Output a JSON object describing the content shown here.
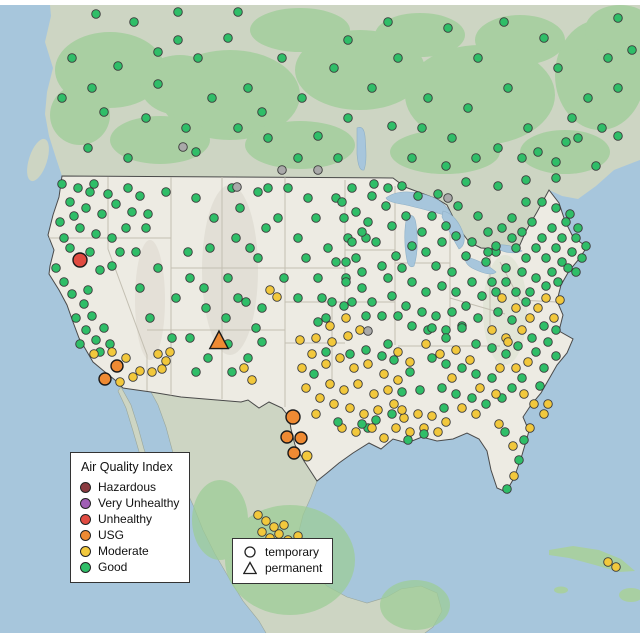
{
  "legend": {
    "title": "Air Quality Index",
    "items": [
      {
        "label": "Hazardous",
        "level": "h"
      },
      {
        "label": "Very Unhealthy",
        "level": "v"
      },
      {
        "label": "Unhealthy",
        "level": "r"
      },
      {
        "label": "USG",
        "level": "u"
      },
      {
        "label": "Moderate",
        "level": "m"
      },
      {
        "label": "Good",
        "level": "g"
      }
    ]
  },
  "shape_legend": {
    "items": [
      {
        "label": "temporary",
        "shape": "circle"
      },
      {
        "label": "permanent",
        "shape": "triangle"
      }
    ]
  },
  "colors": {
    "h": "#8a3a40",
    "v": "#a05fb5",
    "r": "#e14b41",
    "u": "#ee8a33",
    "m": "#f2c83c",
    "g": "#2fbe68",
    "x": "#a9a9a9"
  },
  "map_palette": {
    "ocean": "#a7c6dc",
    "land_other": "#cdd5c3",
    "land_us": "#edebe3",
    "vegetation": "#9ccd96",
    "state_line": "#c3bfb2"
  },
  "markers_format": "[x, y, level?(g|m|u|r|x), radius?, shape?(c|t)]",
  "markers": [
    [
      96,
      14
    ],
    [
      134,
      22
    ],
    [
      178,
      40
    ],
    [
      72,
      58
    ],
    [
      118,
      66
    ],
    [
      158,
      84
    ],
    [
      62,
      98
    ],
    [
      104,
      112
    ],
    [
      146,
      118
    ],
    [
      198,
      58
    ],
    [
      228,
      38
    ],
    [
      212,
      98
    ],
    [
      248,
      88
    ],
    [
      186,
      128
    ],
    [
      238,
      128
    ],
    [
      282,
      58
    ],
    [
      302,
      98
    ],
    [
      268,
      138
    ],
    [
      318,
      136
    ],
    [
      348,
      118
    ],
    [
      334,
      68
    ],
    [
      372,
      88
    ],
    [
      398,
      58
    ],
    [
      392,
      126
    ],
    [
      428,
      98
    ],
    [
      452,
      138
    ],
    [
      478,
      58
    ],
    [
      468,
      108
    ],
    [
      508,
      88
    ],
    [
      528,
      128
    ],
    [
      558,
      68
    ],
    [
      588,
      98
    ],
    [
      608,
      58
    ],
    [
      578,
      138
    ],
    [
      618,
      136
    ],
    [
      544,
      38
    ],
    [
      504,
      22
    ],
    [
      618,
      18
    ],
    [
      88,
      148
    ],
    [
      128,
      158
    ],
    [
      298,
      158
    ],
    [
      338,
      158
    ],
    [
      412,
      158
    ],
    [
      446,
      166
    ],
    [
      476,
      158
    ],
    [
      522,
      158
    ],
    [
      556,
      162
    ],
    [
      596,
      166
    ],
    [
      448,
      28
    ],
    [
      388,
      22
    ],
    [
      348,
      40
    ],
    [
      178,
      12
    ],
    [
      238,
      12
    ],
    [
      158,
      52
    ],
    [
      618,
      88
    ],
    [
      92,
      88
    ],
    [
      196,
      152
    ],
    [
      262,
      112
    ],
    [
      422,
      128
    ],
    [
      498,
      148
    ],
    [
      538,
      152
    ],
    [
      572,
      118
    ],
    [
      602,
      128
    ],
    [
      632,
      50
    ],
    [
      566,
      142
    ],
    [
      466,
      182
    ],
    [
      498,
      186
    ],
    [
      526,
      180
    ],
    [
      556,
      178
    ],
    [
      62,
      184
    ],
    [
      78,
      188
    ],
    [
      94,
      184
    ],
    [
      108,
      194
    ],
    [
      70,
      202
    ],
    [
      86,
      208
    ],
    [
      102,
      214
    ],
    [
      116,
      204
    ],
    [
      60,
      222
    ],
    [
      80,
      228
    ],
    [
      96,
      234
    ],
    [
      112,
      238
    ],
    [
      126,
      228
    ],
    [
      70,
      248
    ],
    [
      90,
      252
    ],
    [
      56,
      268
    ],
    [
      120,
      252
    ],
    [
      132,
      212
    ],
    [
      128,
      188
    ],
    [
      140,
      196
    ],
    [
      148,
      214
    ],
    [
      90,
      192
    ],
    [
      74,
      216
    ],
    [
      64,
      238
    ],
    [
      100,
      270
    ],
    [
      112,
      266
    ],
    [
      80,
      260,
      "r",
      7
    ],
    [
      64,
      282
    ],
    [
      72,
      294
    ],
    [
      84,
      304
    ],
    [
      92,
      316
    ],
    [
      76,
      318
    ],
    [
      86,
      330
    ],
    [
      96,
      340
    ],
    [
      104,
      328
    ],
    [
      80,
      344
    ],
    [
      110,
      344
    ],
    [
      100,
      352
    ],
    [
      88,
      290
    ],
    [
      94,
      354,
      "m"
    ],
    [
      126,
      358,
      "m"
    ],
    [
      120,
      382,
      "m"
    ],
    [
      133,
      377,
      "m"
    ],
    [
      140,
      371,
      "m"
    ],
    [
      112,
      352,
      "m"
    ],
    [
      152,
      372,
      "m"
    ],
    [
      117,
      366,
      "u",
      6
    ],
    [
      105,
      379,
      "u",
      6
    ],
    [
      140,
      288
    ],
    [
      158,
      268
    ],
    [
      176,
      298
    ],
    [
      150,
      318
    ],
    [
      190,
      278
    ],
    [
      206,
      308
    ],
    [
      172,
      338
    ],
    [
      210,
      248
    ],
    [
      228,
      278
    ],
    [
      196,
      198
    ],
    [
      214,
      218
    ],
    [
      240,
      208
    ],
    [
      166,
      192
    ],
    [
      146,
      228
    ],
    [
      136,
      252
    ],
    [
      250,
      248
    ],
    [
      266,
      228
    ],
    [
      236,
      238
    ],
    [
      188,
      252
    ],
    [
      204,
      288
    ],
    [
      226,
      318
    ],
    [
      246,
      302
    ],
    [
      158,
      354,
      "m"
    ],
    [
      166,
      361,
      "m"
    ],
    [
      162,
      369,
      "m"
    ],
    [
      170,
      352,
      "m"
    ],
    [
      190,
      338
    ],
    [
      208,
      358
    ],
    [
      228,
      344
    ],
    [
      248,
      358
    ],
    [
      262,
      342
    ],
    [
      196,
      372
    ],
    [
      232,
      372
    ],
    [
      256,
      328
    ],
    [
      244,
      368,
      "m"
    ],
    [
      252,
      380,
      "m"
    ],
    [
      219,
      341,
      "u",
      8,
      "t"
    ],
    [
      232,
      188
    ],
    [
      258,
      192
    ],
    [
      288,
      188
    ],
    [
      308,
      198
    ],
    [
      278,
      218
    ],
    [
      298,
      238
    ],
    [
      258,
      258
    ],
    [
      284,
      278
    ],
    [
      238,
      298
    ],
    [
      262,
      308
    ],
    [
      298,
      298
    ],
    [
      318,
      278
    ],
    [
      328,
      248
    ],
    [
      344,
      218
    ],
    [
      352,
      188
    ],
    [
      336,
      198
    ],
    [
      316,
      218
    ],
    [
      306,
      258
    ],
    [
      322,
      298
    ],
    [
      268,
      188
    ],
    [
      348,
      238
    ],
    [
      356,
      258
    ],
    [
      366,
      238
    ],
    [
      346,
      278
    ],
    [
      362,
      288
    ],
    [
      270,
      290,
      "m"
    ],
    [
      277,
      297,
      "m"
    ],
    [
      342,
      202
    ],
    [
      356,
      212
    ],
    [
      372,
      196
    ],
    [
      386,
      206
    ],
    [
      362,
      232
    ],
    [
      376,
      242
    ],
    [
      392,
      226
    ],
    [
      406,
      216
    ],
    [
      346,
      262
    ],
    [
      362,
      272
    ],
    [
      382,
      266
    ],
    [
      396,
      256
    ],
    [
      412,
      246
    ],
    [
      422,
      232
    ],
    [
      432,
      216
    ],
    [
      426,
      252
    ],
    [
      442,
      242
    ],
    [
      446,
      226
    ],
    [
      456,
      236
    ],
    [
      436,
      266
    ],
    [
      452,
      272
    ],
    [
      466,
      256
    ],
    [
      472,
      242
    ],
    [
      412,
      282
    ],
    [
      426,
      292
    ],
    [
      442,
      286
    ],
    [
      456,
      292
    ],
    [
      472,
      282
    ],
    [
      392,
      296
    ],
    [
      372,
      302
    ],
    [
      352,
      302
    ],
    [
      406,
      306
    ],
    [
      422,
      312
    ],
    [
      436,
      316
    ],
    [
      452,
      312
    ],
    [
      466,
      306
    ],
    [
      482,
      296
    ],
    [
      492,
      282
    ],
    [
      486,
      262
    ],
    [
      496,
      252
    ],
    [
      398,
      316
    ],
    [
      382,
      316
    ],
    [
      366,
      316
    ],
    [
      412,
      326
    ],
    [
      428,
      330
    ],
    [
      446,
      330
    ],
    [
      462,
      326
    ],
    [
      478,
      318
    ],
    [
      402,
      268
    ],
    [
      388,
      278
    ],
    [
      418,
      196
    ],
    [
      438,
      194
    ],
    [
      458,
      206
    ],
    [
      478,
      216
    ],
    [
      488,
      232
    ],
    [
      368,
      222
    ],
    [
      352,
      242
    ],
    [
      336,
      262
    ],
    [
      346,
      282
    ],
    [
      332,
      302
    ],
    [
      326,
      318
    ],
    [
      388,
      188
    ],
    [
      402,
      186
    ],
    [
      374,
      184
    ],
    [
      502,
      228
    ],
    [
      512,
      218
    ],
    [
      522,
      232
    ],
    [
      532,
      222
    ],
    [
      542,
      238
    ],
    [
      552,
      228
    ],
    [
      516,
      248
    ],
    [
      526,
      258
    ],
    [
      536,
      248
    ],
    [
      546,
      258
    ],
    [
      556,
      248
    ],
    [
      562,
      238
    ],
    [
      506,
      268
    ],
    [
      522,
      272
    ],
    [
      536,
      278
    ],
    [
      552,
      272
    ],
    [
      562,
      262
    ],
    [
      572,
      252
    ],
    [
      576,
      238
    ],
    [
      566,
      222
    ],
    [
      556,
      208
    ],
    [
      542,
      202
    ],
    [
      526,
      202
    ],
    [
      576,
      272
    ],
    [
      582,
      258
    ],
    [
      586,
      246
    ],
    [
      512,
      238
    ],
    [
      496,
      246
    ],
    [
      488,
      252
    ],
    [
      506,
      282
    ],
    [
      496,
      292
    ],
    [
      516,
      292
    ],
    [
      530,
      292
    ],
    [
      546,
      286
    ],
    [
      558,
      282
    ],
    [
      568,
      268
    ],
    [
      570,
      214
    ],
    [
      578,
      228
    ],
    [
      502,
      298,
      "m"
    ],
    [
      516,
      308,
      "m"
    ],
    [
      530,
      318,
      "m"
    ],
    [
      546,
      298,
      "m"
    ],
    [
      522,
      330,
      "m"
    ],
    [
      554,
      318,
      "m"
    ],
    [
      492,
      330,
      "m"
    ],
    [
      506,
      338,
      "m"
    ],
    [
      538,
      308,
      "m"
    ],
    [
      560,
      300,
      "m"
    ],
    [
      498,
      312
    ],
    [
      512,
      320
    ],
    [
      526,
      302
    ],
    [
      544,
      326
    ],
    [
      556,
      330
    ],
    [
      432,
      328
    ],
    [
      446,
      338
    ],
    [
      462,
      328
    ],
    [
      476,
      344
    ],
    [
      492,
      348
    ],
    [
      506,
      354
    ],
    [
      432,
      358
    ],
    [
      446,
      364
    ],
    [
      462,
      368
    ],
    [
      476,
      374
    ],
    [
      492,
      378
    ],
    [
      442,
      388
    ],
    [
      456,
      394
    ],
    [
      472,
      398
    ],
    [
      486,
      404
    ],
    [
      502,
      398
    ],
    [
      512,
      388
    ],
    [
      522,
      378
    ],
    [
      536,
      352
    ],
    [
      548,
      342
    ],
    [
      532,
      338
    ],
    [
      518,
      346
    ],
    [
      544,
      368
    ],
    [
      556,
      356
    ],
    [
      540,
      386
    ],
    [
      426,
      344,
      "m"
    ],
    [
      440,
      354,
      "m"
    ],
    [
      456,
      350,
      "m"
    ],
    [
      470,
      360,
      "m"
    ],
    [
      500,
      368,
      "m"
    ],
    [
      516,
      368,
      "m"
    ],
    [
      480,
      388,
      "m"
    ],
    [
      496,
      394,
      "m"
    ],
    [
      524,
      394,
      "m"
    ],
    [
      534,
      404,
      "m"
    ],
    [
      544,
      414,
      "m"
    ],
    [
      462,
      408,
      "m"
    ],
    [
      476,
      414,
      "m"
    ],
    [
      452,
      378,
      "m"
    ],
    [
      508,
      342,
      "m"
    ],
    [
      528,
      362,
      "m"
    ],
    [
      548,
      404,
      "m"
    ],
    [
      530,
      428,
      "m"
    ],
    [
      499,
      424,
      "m"
    ],
    [
      505,
      432
    ],
    [
      513,
      446,
      "m"
    ],
    [
      519,
      460
    ],
    [
      514,
      476,
      "m"
    ],
    [
      507,
      489
    ],
    [
      524,
      440
    ],
    [
      396,
      428,
      "m"
    ],
    [
      410,
      432,
      "m"
    ],
    [
      424,
      428,
      "m"
    ],
    [
      438,
      432,
      "m"
    ],
    [
      384,
      438,
      "m"
    ],
    [
      404,
      418,
      "m"
    ],
    [
      418,
      414,
      "m"
    ],
    [
      432,
      416,
      "m"
    ],
    [
      446,
      422,
      "m"
    ],
    [
      392,
      414
    ],
    [
      376,
      420
    ],
    [
      444,
      408
    ],
    [
      368,
      428
    ],
    [
      312,
      354,
      "m"
    ],
    [
      326,
      364,
      "m"
    ],
    [
      340,
      358,
      "m"
    ],
    [
      354,
      368,
      "m"
    ],
    [
      368,
      364,
      "m"
    ],
    [
      384,
      374,
      "m"
    ],
    [
      330,
      384,
      "m"
    ],
    [
      344,
      390,
      "m"
    ],
    [
      358,
      384,
      "m"
    ],
    [
      374,
      394,
      "m"
    ],
    [
      388,
      390,
      "m"
    ],
    [
      398,
      380,
      "m"
    ],
    [
      320,
      398,
      "m"
    ],
    [
      334,
      404,
      "m"
    ],
    [
      350,
      408,
      "m"
    ],
    [
      364,
      414,
      "m"
    ],
    [
      378,
      410,
      "m"
    ],
    [
      394,
      404,
      "m"
    ],
    [
      402,
      410,
      "m"
    ],
    [
      302,
      368,
      "m"
    ],
    [
      306,
      388,
      "m"
    ],
    [
      316,
      414,
      "m"
    ],
    [
      342,
      428,
      "m"
    ],
    [
      356,
      432,
      "m"
    ],
    [
      372,
      428,
      "m"
    ],
    [
      398,
      352,
      "m"
    ],
    [
      410,
      362,
      "m"
    ],
    [
      300,
      340,
      "m"
    ],
    [
      316,
      338,
      "m"
    ],
    [
      332,
      342,
      "m"
    ],
    [
      348,
      336,
      "m"
    ],
    [
      314,
      374
    ],
    [
      350,
      354
    ],
    [
      394,
      360
    ],
    [
      410,
      372
    ],
    [
      420,
      390
    ],
    [
      362,
      424
    ],
    [
      338,
      422
    ],
    [
      408,
      440
    ],
    [
      424,
      434
    ],
    [
      326,
      352
    ],
    [
      366,
      350
    ],
    [
      382,
      356
    ],
    [
      402,
      392
    ],
    [
      388,
      344
    ],
    [
      330,
      326,
      "m"
    ],
    [
      346,
      318,
      "m"
    ],
    [
      360,
      330,
      "m"
    ],
    [
      318,
      322
    ],
    [
      344,
      306
    ],
    [
      293,
      417,
      "u",
      7
    ],
    [
      287,
      437,
      "u",
      6
    ],
    [
      301,
      438,
      "u",
      6
    ],
    [
      294,
      453,
      "u",
      6
    ],
    [
      307,
      456,
      "m",
      5
    ],
    [
      258,
      515,
      "m"
    ],
    [
      266,
      521,
      "m"
    ],
    [
      274,
      527,
      "m"
    ],
    [
      262,
      532,
      "m"
    ],
    [
      270,
      538,
      "m"
    ],
    [
      279,
      534,
      "m"
    ],
    [
      284,
      525,
      "m"
    ],
    [
      288,
      540,
      "m"
    ],
    [
      298,
      536,
      "m"
    ],
    [
      608,
      562,
      "m"
    ],
    [
      616,
      567,
      "m"
    ],
    [
      183,
      147,
      "x"
    ],
    [
      237,
      187,
      "x"
    ],
    [
      318,
      170,
      "x"
    ],
    [
      448,
      198,
      "x"
    ],
    [
      368,
      331,
      "x"
    ],
    [
      282,
      170,
      "x"
    ]
  ]
}
